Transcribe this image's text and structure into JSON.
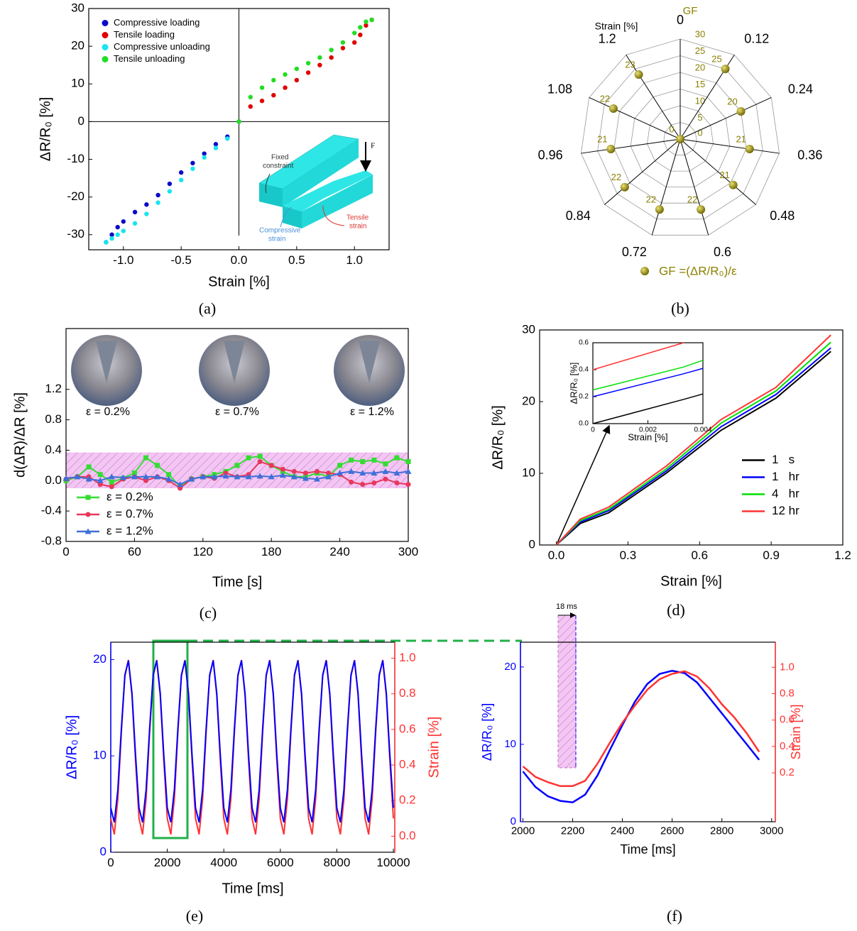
{
  "chart_data": [
    {
      "type": "scatter",
      "panel_label": "(a)",
      "xlabel": "Strain [%]",
      "ylabel": "ΔR/R₀ [%]",
      "xlim": [
        -1.3,
        1.3
      ],
      "ylim": [
        -34,
        30
      ],
      "xticks": [
        {
          "value": -1,
          "label": "-1.0"
        },
        -0.5,
        {
          "value": 0,
          "label": "0.0"
        },
        0.5,
        {
          "value": 1,
          "label": "1.0"
        }
      ],
      "yticks": [
        -30,
        -20,
        -10,
        0,
        10,
        20,
        30
      ],
      "zero_lines": true,
      "legend": "upper left",
      "annotations": [
        "Fixed",
        "constraint",
        "F",
        "Compressive",
        "strain",
        "Tensile",
        "strain"
      ],
      "series": [
        {
          "name": "Compressive loading",
          "color": "#0a0ac8",
          "x": [
            -1.15,
            -1.1,
            -1.05,
            -1.0,
            -0.9,
            -0.8,
            -0.7,
            -0.6,
            -0.5,
            -0.4,
            -0.3,
            -0.2,
            -0.1,
            0
          ],
          "values": [
            -32,
            -30,
            -28,
            -26.5,
            -24,
            -22,
            -19.5,
            -16.5,
            -13.5,
            -11,
            -8.5,
            -6,
            -4,
            0
          ]
        },
        {
          "name": "Tensile loading",
          "color": "#e00000",
          "x": [
            0,
            0.1,
            0.2,
            0.3,
            0.4,
            0.5,
            0.6,
            0.7,
            0.8,
            0.9,
            1.0,
            1.05,
            1.1,
            1.15
          ],
          "values": [
            0,
            4,
            5.5,
            7,
            9,
            11,
            13,
            15,
            17,
            19.5,
            21,
            23,
            25.5,
            27
          ]
        },
        {
          "name": "Compressive unloading",
          "color": "#18e4f0",
          "x": [
            -1.15,
            -1.1,
            -1.05,
            -1.0,
            -0.9,
            -0.8,
            -0.7,
            -0.6,
            -0.5,
            -0.4,
            -0.3,
            -0.2,
            -0.1,
            0
          ],
          "values": [
            -32,
            -31,
            -30,
            -29,
            -27,
            -24.5,
            -21.5,
            -18.5,
            -15.5,
            -12.5,
            -9.5,
            -7,
            -4.5,
            0
          ]
        },
        {
          "name": "Tensile unloading",
          "color": "#22dd22",
          "x": [
            0,
            0.1,
            0.2,
            0.3,
            0.4,
            0.5,
            0.6,
            0.7,
            0.8,
            0.9,
            1.0,
            1.05,
            1.1,
            1.15
          ],
          "values": [
            0,
            6.5,
            9,
            11,
            12.5,
            14,
            15.5,
            17,
            19,
            21,
            23.5,
            25,
            26.5,
            27
          ]
        }
      ]
    },
    {
      "type": "radar",
      "panel_label": "(b)",
      "axis_label": "Strain [%]",
      "radial_label": "GF",
      "categories": [
        "0",
        "0.12",
        "0.24",
        "0.36",
        "0.48",
        "0.6",
        "0.72",
        "0.84",
        "0.96",
        "1.08",
        "1.2"
      ],
      "rlim": [
        0,
        30
      ],
      "rticks": [
        0,
        5,
        10,
        15,
        20,
        25,
        30
      ],
      "series": [
        {
          "name": "GF =(ΔR/R₀)/ε",
          "color": "#8b8000",
          "values": [
            0,
            25,
            20,
            21,
            21,
            22,
            22,
            22,
            21,
            22,
            23
          ]
        }
      ]
    },
    {
      "type": "line",
      "panel_label": "(c)",
      "xlabel": "Time [s]",
      "ylabel": "d(ΔR)/ΔR [%]",
      "xlim": [
        0,
        300
      ],
      "ylim": [
        -0.8,
        2.0
      ],
      "xticks": [
        0,
        60,
        120,
        180,
        240,
        300
      ],
      "yticks": [
        -0.8,
        -0.4,
        {
          "value": 0,
          "label": "0.0"
        },
        0.4,
        0.8,
        1.2
      ],
      "band": [
        -0.1,
        0.37
      ],
      "legend": "lower left",
      "annotations": [
        "ε = 0.2%",
        "ε = 0.7%",
        "ε = 1.2%"
      ],
      "x": [
        0,
        10,
        20,
        30,
        40,
        50,
        60,
        70,
        80,
        90,
        100,
        110,
        120,
        130,
        140,
        150,
        160,
        170,
        180,
        190,
        200,
        210,
        220,
        230,
        240,
        250,
        260,
        270,
        280,
        290,
        300
      ],
      "series": [
        {
          "name": "ε = 0.2%",
          "color": "#33dd33",
          "marker": "square",
          "values": [
            0.0,
            0.05,
            0.18,
            0.08,
            -0.02,
            0.03,
            0.1,
            0.3,
            0.2,
            0.08,
            -0.08,
            0.02,
            0.05,
            0.08,
            0.12,
            0.2,
            0.3,
            0.32,
            0.2,
            0.12,
            0.05,
            0.05,
            0.1,
            0.05,
            0.2,
            0.27,
            0.25,
            0.27,
            0.22,
            0.3,
            0.25
          ]
        },
        {
          "name": "ε = 0.7%",
          "color": "#e8375a",
          "marker": "circle",
          "values": [
            0.02,
            0.05,
            0.05,
            -0.05,
            -0.08,
            0.02,
            0.05,
            0.0,
            0.05,
            0.0,
            -0.1,
            0.02,
            0.05,
            0.03,
            0.1,
            0.05,
            0.08,
            0.25,
            0.2,
            0.15,
            0.12,
            0.1,
            0.12,
            0.1,
            0.08,
            -0.02,
            -0.05,
            -0.03,
            0.02,
            -0.03,
            -0.05
          ]
        },
        {
          "name": "ε = 1.2%",
          "color": "#3f6fd8",
          "marker": "triangle",
          "values": [
            0.03,
            0.05,
            0.02,
            0.0,
            0.05,
            0.04,
            0.05,
            0.05,
            0.05,
            0.02,
            -0.05,
            0.02,
            0.05,
            0.05,
            0.06,
            0.05,
            0.05,
            0.06,
            0.05,
            0.07,
            0.05,
            0.03,
            0.02,
            0.05,
            0.1,
            0.12,
            0.1,
            0.1,
            0.12,
            0.1,
            0.12
          ]
        }
      ]
    },
    {
      "type": "line",
      "panel_label": "(d)",
      "xlabel": "Strain [%]",
      "ylabel": "ΔR/R₀ [%]",
      "xlim": [
        -0.07,
        1.2
      ],
      "ylim": [
        0,
        30
      ],
      "xticks": [
        {
          "value": 0,
          "label": "0.0"
        },
        0.3,
        0.6,
        0.9,
        1.2
      ],
      "yticks": [
        0,
        10,
        20,
        30
      ],
      "legend": "center right",
      "x": [
        0,
        0.1,
        0.22,
        0.46,
        0.69,
        0.92,
        1.15
      ],
      "series": [
        {
          "name": "1   s",
          "color": "#000000",
          "values": [
            0,
            3,
            4.5,
            10,
            16,
            20.5,
            27
          ]
        },
        {
          "name": "1   hr",
          "color": "#0000ff",
          "values": [
            0,
            3.2,
            4.8,
            10.3,
            16.5,
            21,
            27.5
          ]
        },
        {
          "name": "4   hr",
          "color": "#00e000",
          "values": [
            0,
            3.4,
            5,
            10.6,
            17,
            21.5,
            28.3
          ]
        },
        {
          "name": "12 hr",
          "color": "#ff3333",
          "values": [
            0,
            3.6,
            5.3,
            11,
            17.5,
            22,
            29.3
          ]
        }
      ]
    },
    {
      "type": "line",
      "xlabel": "Strain [%]",
      "ylabel": "ΔR/R₀ [%]",
      "xlim": [
        0,
        0.004
      ],
      "ylim": [
        0,
        0.6
      ],
      "xticks": [
        0,
        0.002,
        0.004
      ],
      "yticks": [
        {
          "value": 0,
          "label": "0.0"
        },
        0.2,
        0.4,
        0.6
      ],
      "x": [
        0,
        0.0033,
        0.004
      ],
      "series": [
        {
          "color": "#000000",
          "values": [
            0,
            0.18,
            0.22
          ]
        },
        {
          "color": "#0000ff",
          "values": [
            0.2,
            0.37,
            0.41
          ]
        },
        {
          "color": "#00e000",
          "values": [
            0.25,
            0.42,
            0.47
          ]
        },
        {
          "color": "#ff3333",
          "values": [
            0.4,
            0.6,
            null
          ]
        }
      ]
    },
    {
      "type": "line",
      "panel_label": "(e)",
      "xlabel": "Time [ms]",
      "ylabel": "ΔR/R₀ [%]",
      "y2label": "Strain [%]",
      "xlim": [
        0,
        10050
      ],
      "ylim": [
        0,
        21.8
      ],
      "y2lim": [
        -0.09,
        1.09
      ],
      "xticks": [
        0,
        2000,
        4000,
        6000,
        8000,
        10000
      ],
      "yticks": [
        0,
        10,
        20
      ],
      "y2ticks": [
        {
          "value": 0,
          "label": "0.0"
        },
        0.2,
        0.4,
        0.6,
        0.8,
        {
          "value": 1,
          "label": "1.0"
        }
      ],
      "x": [
        0,
        125,
        250,
        375,
        500,
        625,
        750,
        875,
        1000,
        1125,
        1250,
        1375,
        1500,
        1625,
        1750,
        1875,
        2000,
        2125,
        2250,
        2375,
        2500,
        2625,
        2750,
        2875,
        3000,
        3125,
        3250,
        3375,
        3500,
        3625,
        3750,
        3875,
        4000,
        4125,
        4250,
        4375,
        4500,
        4625,
        4750,
        4875,
        5000,
        5125,
        5250,
        5375,
        5500,
        5625,
        5750,
        5875,
        6000,
        6125,
        6250,
        6375,
        6500,
        6625,
        6750,
        6875,
        7000,
        7125,
        7250,
        7375,
        7500,
        7625,
        7750,
        7875,
        8000,
        8125,
        8250,
        8375,
        8500,
        8625,
        8750,
        8875,
        9000,
        9125,
        9250,
        9375,
        9500,
        9625,
        9750,
        9875,
        10000
      ],
      "series": [
        {
          "color": "#ff3333",
          "axis": "y2",
          "values": [
            0.1,
            0.01,
            0.21,
            0.58,
            0.9,
            0.99,
            0.79,
            0.43,
            0.1,
            0.01,
            0.21,
            0.58,
            0.9,
            0.99,
            0.79,
            0.43,
            0.1,
            0.01,
            0.21,
            0.58,
            0.9,
            0.99,
            0.79,
            0.43,
            0.1,
            0.01,
            0.21,
            0.58,
            0.9,
            0.99,
            0.79,
            0.43,
            0.1,
            0.01,
            0.21,
            0.58,
            0.9,
            0.99,
            0.79,
            0.43,
            0.1,
            0.01,
            0.21,
            0.58,
            0.9,
            0.99,
            0.79,
            0.43,
            0.1,
            0.01,
            0.21,
            0.58,
            0.9,
            0.99,
            0.79,
            0.43,
            0.1,
            0.01,
            0.21,
            0.58,
            0.9,
            0.99,
            0.79,
            0.43,
            0.1,
            0.01,
            0.21,
            0.58,
            0.9,
            0.99,
            0.79,
            0.43,
            0.1,
            0.01,
            0.21,
            0.58,
            0.9,
            0.99,
            0.79,
            0.43,
            0.1
          ]
        },
        {
          "color": "#0000ff",
          "values": [
            4.6,
            3.1,
            6.5,
            12.8,
            18.4,
            19.9,
            16.5,
            10.2,
            4.6,
            3.1,
            6.5,
            12.8,
            18.4,
            19.9,
            16.5,
            10.2,
            4.6,
            3.1,
            6.5,
            12.8,
            18.4,
            19.9,
            16.5,
            10.2,
            4.6,
            3.1,
            6.5,
            12.8,
            18.4,
            19.9,
            16.5,
            10.2,
            4.6,
            3.1,
            6.5,
            12.8,
            18.4,
            19.9,
            16.5,
            10.2,
            4.6,
            3.1,
            6.5,
            12.8,
            18.4,
            19.9,
            16.5,
            10.2,
            4.6,
            3.1,
            6.5,
            12.8,
            18.4,
            19.9,
            16.5,
            10.2,
            4.6,
            3.1,
            6.5,
            12.8,
            18.4,
            19.9,
            16.5,
            10.2,
            4.6,
            3.1,
            6.5,
            12.8,
            18.4,
            19.9,
            16.5,
            10.2,
            4.6,
            3.1,
            6.5,
            12.8,
            18.4,
            19.9,
            16.5,
            10.2,
            4.6
          ]
        }
      ]
    },
    {
      "type": "line",
      "panel_label": "(f)",
      "xlabel": "Time [ms]",
      "ylabel": "ΔR/R₀ [%]",
      "y2label": "Strain [%]",
      "annotations": [
        "18 ms"
      ],
      "xlim": [
        1990,
        3015
      ],
      "ylim": [
        0,
        23.2
      ],
      "y2lim": [
        -0.17,
        1.19
      ],
      "xticks": [
        2000,
        2200,
        2400,
        2600,
        2800,
        3000
      ],
      "yticks": [
        0,
        10,
        20
      ],
      "y2ticks": [
        0.2,
        0.4,
        0.6,
        0.8,
        {
          "value": 1,
          "label": "1.0"
        }
      ],
      "x": [
        2000,
        2050,
        2100,
        2150,
        2200,
        2250,
        2300,
        2350,
        2400,
        2450,
        2500,
        2550,
        2600,
        2650,
        2700,
        2750,
        2800,
        2850,
        2900,
        2950
      ],
      "series": [
        {
          "color": "#0000ff",
          "values": [
            6.5,
            4.5,
            3.3,
            2.7,
            2.5,
            3.5,
            6,
            9.3,
            12.5,
            15.5,
            17.8,
            19.1,
            19.5,
            19.2,
            18,
            16,
            14,
            12,
            10,
            8
          ]
        },
        {
          "color": "#ff3333",
          "axis": "y2",
          "values": [
            0.25,
            0.17,
            0.13,
            0.1,
            0.1,
            0.14,
            0.27,
            0.43,
            0.58,
            0.71,
            0.83,
            0.91,
            0.95,
            0.97,
            0.93,
            0.84,
            0.72,
            0.62,
            0.5,
            0.36
          ]
        }
      ]
    }
  ]
}
